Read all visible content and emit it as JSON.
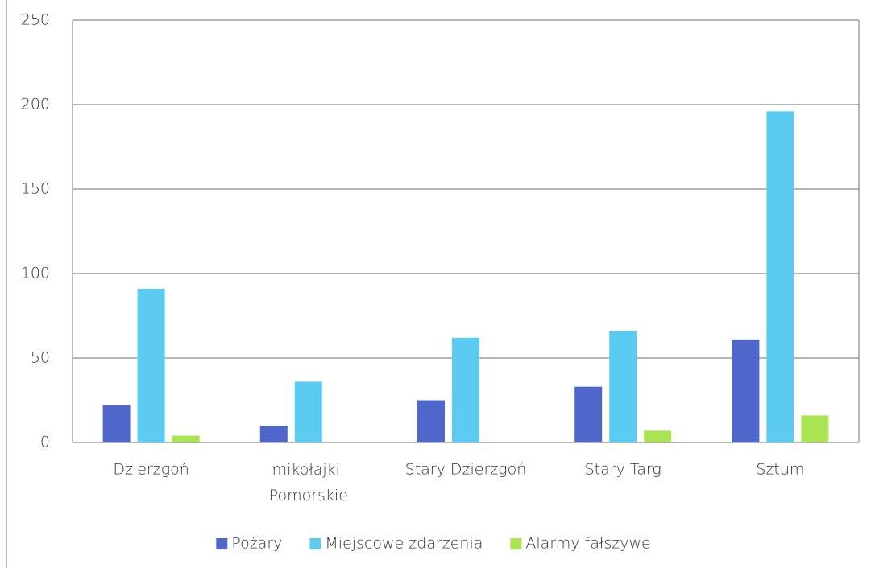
{
  "chart_data": {
    "type": "bar",
    "categories": [
      "Dzierzgoń",
      "mikołajki Pomorskie",
      "Stary Dzierzgoń",
      "Stary Targ",
      "Sztum"
    ],
    "series": [
      {
        "name": "Pożary",
        "color": "#4f67cb",
        "values": [
          22,
          10,
          25,
          33,
          61
        ]
      },
      {
        "name": "Miejscowe zdarzenia",
        "color": "#5bcbf2",
        "values": [
          91,
          36,
          62,
          66,
          196
        ]
      },
      {
        "name": "Alarmy fałszywe",
        "color": "#a8e551",
        "values": [
          4,
          0,
          0,
          7,
          16
        ]
      }
    ],
    "ylim": [
      0,
      250
    ],
    "yticks": [
      0,
      50,
      100,
      150,
      200,
      250
    ],
    "grid": true,
    "legend": "bottom"
  }
}
